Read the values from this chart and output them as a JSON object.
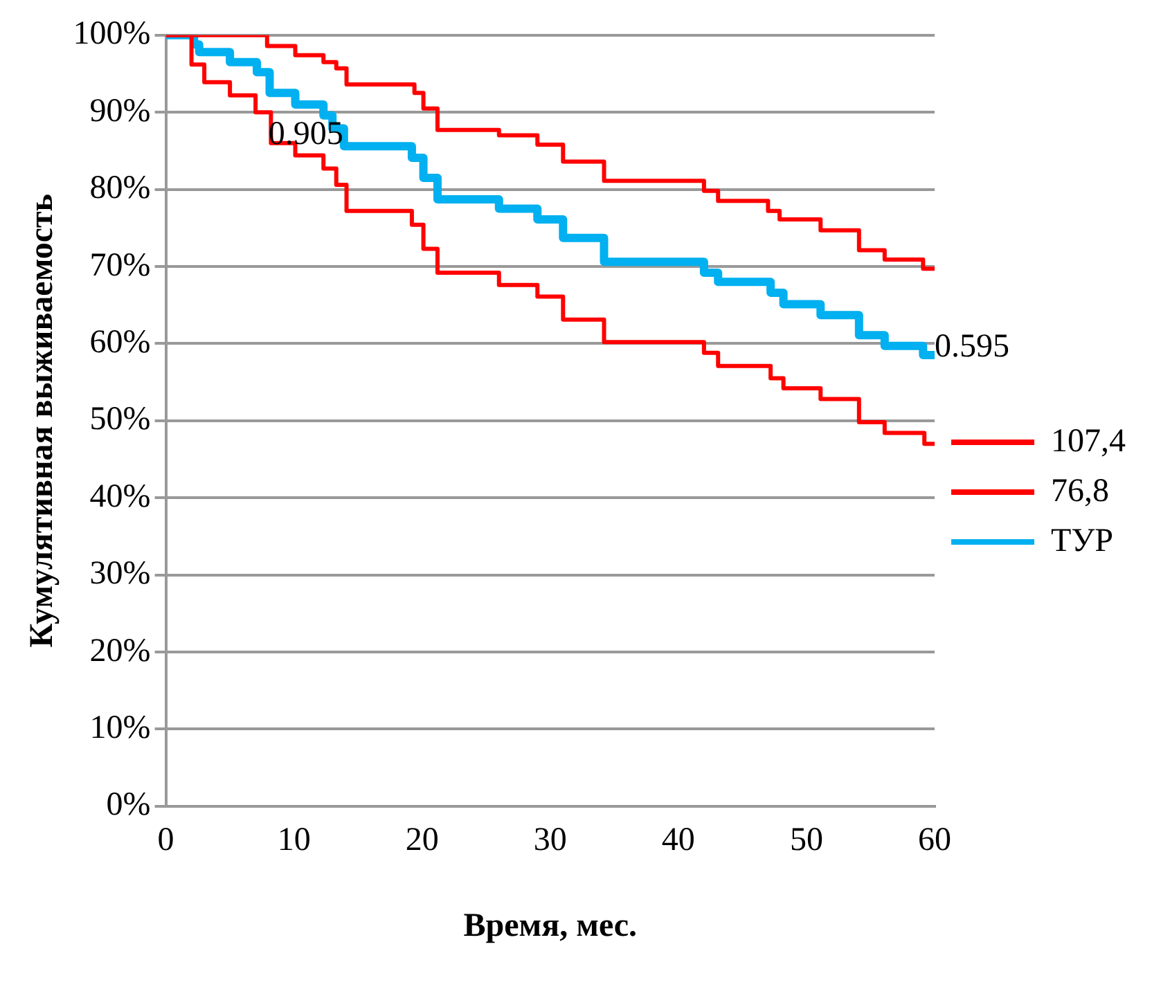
{
  "chart_data": {
    "type": "step",
    "xlabel": "Время, мес.",
    "ylabel": "Кумулятивная выживаемость",
    "xlim": [
      0,
      60
    ],
    "xticks": [
      0,
      10,
      20,
      30,
      40,
      50,
      60
    ],
    "ylim": [
      0,
      100
    ],
    "yticks": [
      {
        "value": 0,
        "label": "0%"
      },
      {
        "value": 10,
        "label": "10%"
      },
      {
        "value": 20,
        "label": "20%"
      },
      {
        "value": 30,
        "label": "30%"
      },
      {
        "value": 40,
        "label": "40%"
      },
      {
        "value": 50,
        "label": "50%"
      },
      {
        "value": 60,
        "label": "60%"
      },
      {
        "value": 70,
        "label": "70%"
      },
      {
        "value": 80,
        "label": "80%"
      },
      {
        "value": 90,
        "label": "90%"
      },
      {
        "value": 100,
        "label": "100%"
      }
    ],
    "grid": "y",
    "legend": "right",
    "marker": "none",
    "series": [
      {
        "name": "107,4",
        "color": "#ff0000",
        "x": [
          0,
          7.9,
          10.1,
          12.3,
          13.3,
          14.1,
          19.4,
          20.1,
          21.2,
          26,
          29,
          31,
          34.2,
          42,
          43.1,
          47,
          47.9,
          51.1,
          54.1,
          56.1,
          59.1,
          60
        ],
        "values": [
          100,
          98.6,
          97.4,
          96.5,
          95.7,
          93.6,
          92.5,
          90.5,
          87.7,
          87,
          85.8,
          83.6,
          81.1,
          79.8,
          78.5,
          77.2,
          76.1,
          74.7,
          72.1,
          70.9,
          69.7,
          69.7
        ]
      },
      {
        "name": "76,8",
        "color": "#ff0000",
        "x": [
          0,
          2,
          3,
          5,
          7,
          8.2,
          10.1,
          12.3,
          13.3,
          14.1,
          19.2,
          20.1,
          21.2,
          26,
          29,
          31,
          34.2,
          42,
          43.1,
          47.2,
          48.2,
          51.1,
          54.1,
          56.1,
          59.2,
          60
        ],
        "values": [
          100,
          96.2,
          93.9,
          92.2,
          90,
          86,
          84.4,
          82.7,
          80.6,
          77.2,
          75.4,
          72.3,
          69.2,
          67.6,
          66.1,
          63.1,
          60.2,
          58.8,
          57.1,
          55.5,
          54.2,
          52.8,
          49.8,
          48.4,
          47,
          47
        ]
      },
      {
        "name": "ТУР",
        "color": "#00b0f0",
        "x": [
          0,
          2.2,
          2.6,
          5,
          7.1,
          8.1,
          10.1,
          12.3,
          13,
          13.9,
          19.2,
          20.1,
          21.2,
          26,
          29,
          31,
          34.2,
          42,
          43.1,
          47.2,
          48.2,
          51.1,
          54.1,
          56.1,
          59.1,
          60
        ],
        "values": [
          100,
          98.8,
          97.8,
          96.5,
          95.2,
          92.5,
          91,
          89.6,
          87.9,
          85.6,
          84.1,
          81.5,
          78.7,
          77.5,
          76.1,
          73.7,
          70.6,
          69.2,
          68,
          66.6,
          65.1,
          63.7,
          61.1,
          59.7,
          58.5,
          58.5
        ]
      }
    ],
    "annotations": [
      {
        "text": "0.905",
        "x": 8,
        "y": 87
      },
      {
        "text": "0.595",
        "x": 60,
        "y": 59.5
      }
    ]
  }
}
